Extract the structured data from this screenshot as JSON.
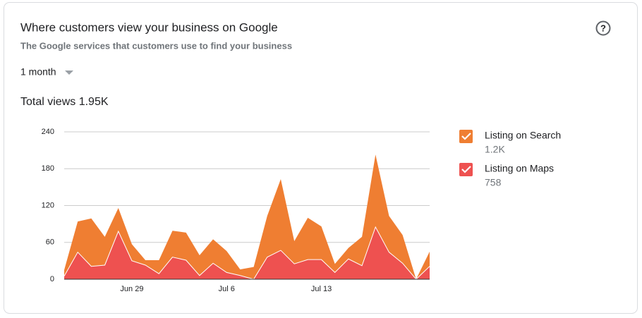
{
  "header": {
    "title": "Where customers view your business on Google",
    "subtitle": "The Google services that customers use to find your business",
    "period": "1 month",
    "total": "Total views 1.95K"
  },
  "chart_data": {
    "type": "stacked_area",
    "categories": [
      null,
      null,
      null,
      null,
      null,
      "Jun 29",
      null,
      null,
      null,
      null,
      null,
      null,
      "Jul 6",
      null,
      null,
      null,
      null,
      null,
      null,
      "Jul 13",
      null,
      null,
      null,
      null,
      null,
      null,
      null,
      null
    ],
    "series": [
      {
        "name": "Listing on Search",
        "color": "#ef7e32",
        "total": {
          "value": 1200,
          "label": "1.2K"
        },
        "values": [
          10,
          50,
          78,
          46,
          38,
          27,
          8,
          22,
          43,
          45,
          33,
          39,
          35,
          10,
          20,
          67,
          116,
          37,
          68,
          54,
          14,
          18,
          47,
          118,
          59,
          46,
          0,
          24
        ]
      },
      {
        "name": "Listing on Maps",
        "color": "#ee5150",
        "total": 758,
        "values": [
          5,
          44,
          21,
          23,
          78,
          30,
          23,
          9,
          36,
          31,
          6,
          26,
          11,
          6,
          0,
          36,
          47,
          25,
          32,
          32,
          11,
          33,
          22,
          85,
          44,
          26,
          0,
          21
        ]
      }
    ],
    "ylim": [
      0,
      240
    ],
    "yticks": [
      0,
      60,
      120,
      180,
      240
    ],
    "grid": true
  }
}
